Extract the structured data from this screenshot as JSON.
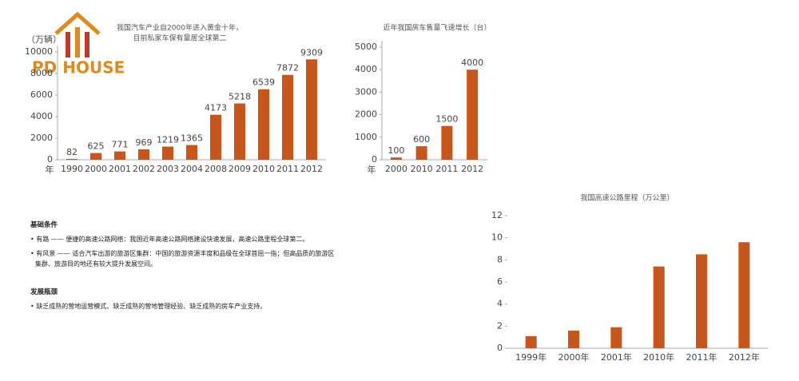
{
  "logo": "PD HOUSE",
  "chart_data": [
    {
      "type": "bar",
      "title": [
        "我国汽车产业自2000年进入黄金十年，",
        "目前私家车保有量居全球第二"
      ],
      "y_label": "（万辆）",
      "x_label": "年",
      "categories": [
        "1990",
        "2000",
        "2001",
        "2002",
        "2003",
        "2004",
        "2008",
        "2009",
        "2010",
        "2011",
        "2012"
      ],
      "values": [
        82,
        625,
        771,
        969,
        1219,
        1365,
        4173,
        5218,
        6539,
        7872,
        9309
      ],
      "color": "#c8561a",
      "ylim": [
        0,
        10000
      ],
      "yticks": [
        0,
        2000,
        4000,
        6000,
        8000,
        10000
      ],
      "data_labels": true
    },
    {
      "type": "bar",
      "title": [
        "近年我国房车售量飞速增长（台）"
      ],
      "x_label": "年",
      "categories": [
        "2000",
        "2010",
        "2011",
        "2012"
      ],
      "values": [
        100,
        600,
        1500,
        4000
      ],
      "color": "#c8561a",
      "ylim": [
        0,
        5000
      ],
      "yticks": [
        0,
        1000,
        2000,
        3000,
        4000,
        5000
      ],
      "data_labels": true
    },
    {
      "type": "bar",
      "title": [
        "我国高速公路里程（万公里）"
      ],
      "categories": [
        "1999年",
        "2000年",
        "2001年",
        "2010年",
        "2011年",
        "2012年"
      ],
      "values": [
        1.1,
        1.6,
        1.9,
        7.4,
        8.5,
        9.6
      ],
      "color": "#c8561a",
      "ylim": [
        0,
        12
      ],
      "yticks": [
        0,
        2,
        4,
        6,
        8,
        10,
        12
      ],
      "data_labels": false
    }
  ],
  "sections": [
    {
      "heading": "基础条件",
      "items": [
        "• 有路 —— 便捷的高速公路网络：我国近年高速公路网络建设快速发展，高速公路里程全球第二。",
        "• 有风景 —— 适合汽车出游的旅游区集群：中国的旅游资源丰度和品级在全球首屈一指；但高品质的旅游区集群、旅游目的地还有较大提升发展空间。"
      ]
    },
    {
      "heading": "发展瓶颈",
      "items": [
        "• 缺乏成熟的营地运营模式、缺乏成熟的营地管理经验、缺乏成熟的房车产业支持。"
      ]
    }
  ]
}
